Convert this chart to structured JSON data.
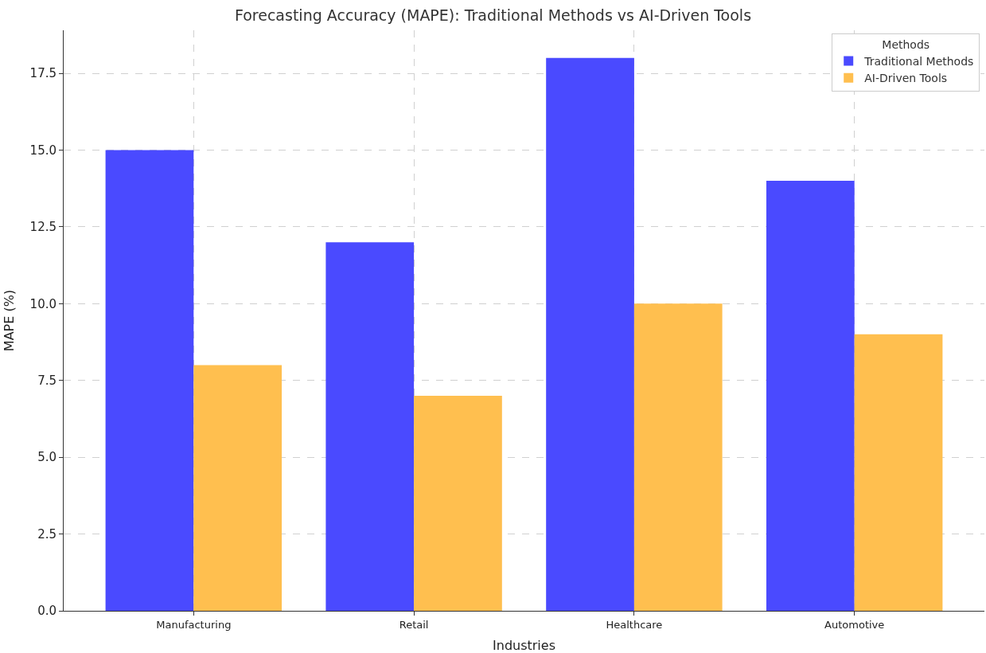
{
  "chart_data": {
    "type": "bar",
    "title": "Forecasting Accuracy (MAPE): Traditional Methods vs AI-Driven Tools",
    "xlabel": "Industries",
    "ylabel": "MAPE (%)",
    "legend_title": "Methods",
    "categories": [
      "Manufacturing",
      "Retail",
      "Healthcare",
      "Automotive"
    ],
    "series": [
      {
        "name": "Traditional Methods",
        "color": "#4a4aff",
        "values": [
          15,
          12,
          18,
          14
        ]
      },
      {
        "name": "AI-Driven Tools",
        "color": "#ffbf4f",
        "values": [
          8,
          7,
          10,
          9
        ]
      }
    ],
    "ylim": [
      0,
      18.9
    ],
    "yticks": [
      {
        "value": 0,
        "label": "0.0"
      },
      {
        "value": 2.5,
        "label": "2.5"
      },
      {
        "value": 5,
        "label": "5.0"
      },
      {
        "value": 7.5,
        "label": "7.5"
      },
      {
        "value": 10,
        "label": "10.0"
      },
      {
        "value": 12.5,
        "label": "12.5"
      },
      {
        "value": 15,
        "label": "15.0"
      },
      {
        "value": 17.5,
        "label": "17.5"
      }
    ],
    "grid": true,
    "legend": "top right"
  }
}
